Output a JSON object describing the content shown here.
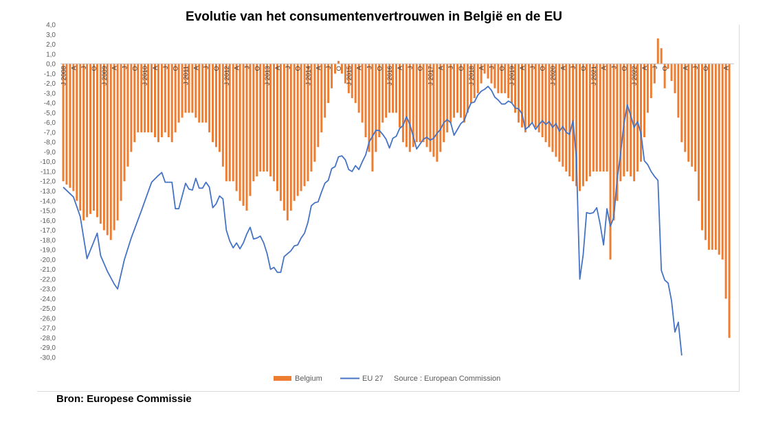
{
  "title": "Evolutie van het consumentenvertrouwen in België en de EU",
  "footnote": "Bron: Europese Commissie",
  "chart_data": {
    "type": "bar",
    "title": "Evolutie van het consumentenvertrouwen in België en de EU",
    "xlabel": "",
    "ylabel": "",
    "ylim": [
      -30,
      4
    ],
    "yticks": [
      "4,0",
      "3,0",
      "2,0",
      "1,0",
      "0,0",
      "-1,0",
      "-2,0",
      "-3,0",
      "-4,0",
      "-5,0",
      "-6,0",
      "-7,0",
      "-8,0",
      "-9,0",
      "-10,0",
      "-11,0",
      "-12,0",
      "-13,0",
      "-14,0",
      "-15,0",
      "-16,0",
      "-17,0",
      "-18,0",
      "-19,0",
      "-20,0",
      "-21,0",
      "-22,0",
      "-23,0",
      "-24,0",
      "-25,0",
      "-26,0",
      "-27,0",
      "-28,0",
      "-29,0",
      "-30,0"
    ],
    "x_start": "2008-01",
    "x_end": "2022-10",
    "year_labels": [
      "J 2008",
      "J 2009",
      "J 2010",
      "J 2011",
      "J 2012",
      "J 2013",
      "J 2014",
      "J 2015",
      "J 2016",
      "J 2017",
      "J 2018",
      "J 2019",
      "J 2020",
      "J 2021",
      "J 2022"
    ],
    "month_labels": [
      "J",
      "A",
      "J",
      "O"
    ],
    "legend": [
      "Belgium",
      "EU 27",
      "Source : European Commission"
    ],
    "legend_position": "bottom",
    "grid": false,
    "colors": {
      "belgium": "#ED7D31",
      "eu27": "#4472C4"
    },
    "belgium_keypoints": [
      [
        0,
        -12
      ],
      [
        3,
        -13
      ],
      [
        6,
        -16
      ],
      [
        9,
        -15
      ],
      [
        12,
        -17
      ],
      [
        14,
        -18
      ],
      [
        16,
        -16
      ],
      [
        18,
        -12
      ],
      [
        20,
        -9
      ],
      [
        22,
        -7
      ],
      [
        24,
        -7
      ],
      [
        26,
        -7
      ],
      [
        28,
        -8
      ],
      [
        30,
        -7
      ],
      [
        32,
        -8
      ],
      [
        34,
        -6
      ],
      [
        36,
        -5
      ],
      [
        38,
        -5
      ],
      [
        40,
        -6
      ],
      [
        42,
        -6
      ],
      [
        44,
        -8
      ],
      [
        46,
        -9
      ],
      [
        48,
        -12
      ],
      [
        50,
        -12
      ],
      [
        52,
        -14
      ],
      [
        54,
        -15
      ],
      [
        56,
        -12
      ],
      [
        58,
        -11
      ],
      [
        60,
        -11
      ],
      [
        62,
        -12
      ],
      [
        64,
        -14
      ],
      [
        66,
        -16
      ],
      [
        68,
        -14
      ],
      [
        70,
        -13
      ],
      [
        72,
        -12
      ],
      [
        74,
        -10
      ],
      [
        76,
        -7
      ],
      [
        78,
        -4
      ],
      [
        80,
        -1
      ],
      [
        81,
        0.3
      ],
      [
        82,
        -1
      ],
      [
        84,
        -3
      ],
      [
        86,
        -4
      ],
      [
        88,
        -6
      ],
      [
        90,
        -9
      ],
      [
        91,
        -11
      ],
      [
        92,
        -9
      ],
      [
        94,
        -6
      ],
      [
        96,
        -5
      ],
      [
        98,
        -5
      ],
      [
        100,
        -8
      ],
      [
        102,
        -9
      ],
      [
        104,
        -8
      ],
      [
        106,
        -8
      ],
      [
        108,
        -9
      ],
      [
        110,
        -10
      ],
      [
        112,
        -8
      ],
      [
        114,
        -6
      ],
      [
        116,
        -5
      ],
      [
        118,
        -6
      ],
      [
        120,
        -4
      ],
      [
        122,
        -3
      ],
      [
        124,
        -1
      ],
      [
        126,
        -2
      ],
      [
        128,
        -3
      ],
      [
        130,
        -3
      ],
      [
        132,
        -4
      ],
      [
        134,
        -6
      ],
      [
        136,
        -7
      ],
      [
        138,
        -6
      ],
      [
        140,
        -7
      ],
      [
        142,
        -8
      ],
      [
        144,
        -9
      ],
      [
        146,
        -10
      ],
      [
        148,
        -11
      ],
      [
        150,
        -12
      ],
      [
        152,
        -13
      ],
      [
        154,
        -12
      ],
      [
        156,
        -11
      ],
      [
        158,
        -11
      ],
      [
        160,
        -11
      ],
      [
        161,
        -20
      ],
      [
        162,
        -16
      ],
      [
        164,
        -12
      ],
      [
        166,
        -11
      ],
      [
        168,
        -12
      ],
      [
        170,
        -10
      ],
      [
        172,
        -5
      ],
      [
        174,
        -2
      ],
      [
        175,
        2.6
      ],
      [
        176,
        1.6
      ],
      [
        177,
        -2.5
      ],
      [
        178,
        -0.5
      ],
      [
        180,
        -3
      ],
      [
        182,
        -8
      ],
      [
        184,
        -10
      ],
      [
        186,
        -11
      ],
      [
        188,
        -17
      ],
      [
        190,
        -19
      ],
      [
        192,
        -19
      ],
      [
        194,
        -20
      ],
      [
        196,
        -28
      ]
    ],
    "eu27_keypoints": [
      [
        0,
        -12.6
      ],
      [
        3,
        -13.6
      ],
      [
        5,
        -15.6
      ],
      [
        7,
        -19.9
      ],
      [
        10,
        -17.3
      ],
      [
        11,
        -19.6
      ],
      [
        13,
        -21.2
      ],
      [
        15,
        -22.5
      ],
      [
        16,
        -23
      ],
      [
        18,
        -20
      ],
      [
        20,
        -17.8
      ],
      [
        23,
        -15
      ],
      [
        26,
        -12.1
      ],
      [
        28,
        -11.4
      ],
      [
        29,
        -11.1
      ],
      [
        30,
        -12.1
      ],
      [
        32,
        -12.1
      ],
      [
        33,
        -14.8
      ],
      [
        34,
        -14.8
      ],
      [
        35,
        -13.5
      ],
      [
        36,
        -12.2
      ],
      [
        37,
        -12.8
      ],
      [
        38,
        -12.9
      ],
      [
        39,
        -11.7
      ],
      [
        40,
        -12.7
      ],
      [
        41,
        -12.7
      ],
      [
        42,
        -12.1
      ],
      [
        43,
        -12.6
      ],
      [
        44,
        -14.7
      ],
      [
        45,
        -14.3
      ],
      [
        46,
        -13.5
      ],
      [
        47,
        -13.8
      ],
      [
        48,
        -17
      ],
      [
        49,
        -18.1
      ],
      [
        50,
        -18.8
      ],
      [
        51,
        -18.3
      ],
      [
        52,
        -18.9
      ],
      [
        53,
        -18.3
      ],
      [
        54,
        -17.4
      ],
      [
        55,
        -16.7
      ],
      [
        56,
        -17.9
      ],
      [
        57,
        -17.8
      ],
      [
        58,
        -17.6
      ],
      [
        59,
        -18.3
      ],
      [
        60,
        -19.4
      ],
      [
        61,
        -21
      ],
      [
        62,
        -20.8
      ],
      [
        63,
        -21.3
      ],
      [
        64,
        -21.3
      ],
      [
        65,
        -19.7
      ],
      [
        66,
        -19.4
      ],
      [
        67,
        -19.1
      ],
      [
        68,
        -18.6
      ],
      [
        69,
        -18.5
      ],
      [
        70,
        -17.8
      ],
      [
        71,
        -17.3
      ],
      [
        72,
        -16.2
      ],
      [
        73,
        -14.5
      ],
      [
        74,
        -14.2
      ],
      [
        75,
        -14.1
      ],
      [
        76,
        -13.1
      ],
      [
        77,
        -12.2
      ],
      [
        78,
        -11.9
      ],
      [
        79,
        -10.7
      ],
      [
        80,
        -10.5
      ],
      [
        81,
        -9.5
      ],
      [
        82,
        -9.4
      ],
      [
        83,
        -9.8
      ],
      [
        84,
        -10.8
      ],
      [
        85,
        -11
      ],
      [
        86,
        -10.4
      ],
      [
        87,
        -10.8
      ],
      [
        88,
        -10
      ],
      [
        89,
        -9.3
      ],
      [
        90,
        -8
      ],
      [
        91,
        -7.4
      ],
      [
        92,
        -6.8
      ],
      [
        93,
        -6.8
      ],
      [
        94,
        -7.2
      ],
      [
        95,
        -7.7
      ],
      [
        96,
        -8.6
      ],
      [
        97,
        -7.6
      ],
      [
        98,
        -7.4
      ],
      [
        99,
        -6.6
      ],
      [
        100,
        -6.3
      ],
      [
        101,
        -5.4
      ],
      [
        102,
        -6.2
      ],
      [
        103,
        -7.4
      ],
      [
        104,
        -8.7
      ],
      [
        105,
        -8.2
      ],
      [
        106,
        -7.7
      ],
      [
        107,
        -7.5
      ],
      [
        108,
        -7.8
      ],
      [
        109,
        -7.6
      ],
      [
        110,
        -7.1
      ],
      [
        111,
        -6.7
      ],
      [
        112,
        -6
      ],
      [
        113,
        -5.7
      ],
      [
        114,
        -6
      ],
      [
        115,
        -7.3
      ],
      [
        116,
        -6.7
      ],
      [
        117,
        -6.1
      ],
      [
        118,
        -5.8
      ],
      [
        119,
        -4.8
      ],
      [
        120,
        -4
      ],
      [
        121,
        -3.9
      ],
      [
        122,
        -3.2
      ],
      [
        123,
        -2.8
      ],
      [
        124,
        -2.6
      ],
      [
        125,
        -2.3
      ],
      [
        126,
        -2.7
      ],
      [
        127,
        -3.4
      ],
      [
        128,
        -3.7
      ],
      [
        129,
        -4.1
      ],
      [
        130,
        -4.1
      ],
      [
        131,
        -3.8
      ],
      [
        132,
        -4
      ],
      [
        133,
        -4.5
      ],
      [
        134,
        -4.6
      ],
      [
        135,
        -5.1
      ],
      [
        136,
        -6.7
      ],
      [
        137,
        -6.4
      ],
      [
        138,
        -6
      ],
      [
        139,
        -6.7
      ],
      [
        140,
        -6.2
      ],
      [
        141,
        -5.8
      ],
      [
        142,
        -6.2
      ],
      [
        143,
        -5.9
      ],
      [
        144,
        -6.5
      ],
      [
        145,
        -6.1
      ],
      [
        146,
        -6.9
      ],
      [
        147,
        -6.4
      ],
      [
        148,
        -7
      ],
      [
        149,
        -7.2
      ],
      [
        150,
        -5.8
      ],
      [
        151,
        -9.6
      ],
      [
        152,
        -22
      ],
      [
        153,
        -19.5
      ],
      [
        154,
        -15.2
      ],
      [
        155,
        -15.3
      ],
      [
        156,
        -15.2
      ],
      [
        157,
        -14.7
      ],
      [
        158,
        -16.4
      ],
      [
        159,
        -18.5
      ],
      [
        160,
        -14.8
      ],
      [
        161,
        -16.6
      ],
      [
        162,
        -15.7
      ],
      [
        163,
        -11.8
      ],
      [
        164,
        -9.2
      ],
      [
        165,
        -6.1
      ],
      [
        166,
        -4.2
      ],
      [
        167,
        -5.3
      ],
      [
        168,
        -6.5
      ],
      [
        169,
        -5.9
      ],
      [
        170,
        -7.1
      ],
      [
        171,
        -9.9
      ],
      [
        172,
        -10.3
      ],
      [
        173,
        -11
      ],
      [
        174,
        -11.5
      ],
      [
        175,
        -11.9
      ],
      [
        176,
        -21.1
      ],
      [
        177,
        -22.1
      ],
      [
        178,
        -22.4
      ],
      [
        179,
        -24.2
      ],
      [
        180,
        -27.4
      ],
      [
        181,
        -26.4
      ],
      [
        182,
        -29.8
      ]
    ]
  }
}
